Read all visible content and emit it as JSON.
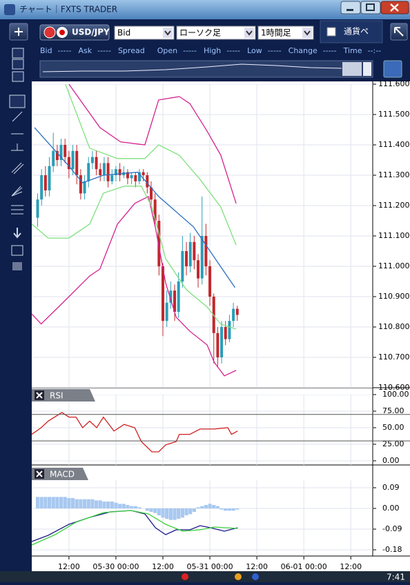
{
  "window": {
    "title": "チャート｜FXTS TRADER"
  },
  "toolbar": {
    "symbol": "USD/JPY",
    "price_type": "Bid",
    "chart_type": "ローソク足",
    "timeframe": "1時間足",
    "pair_label": "通貨ペ"
  },
  "quote": [
    {
      "label": "Bid",
      "value": "-----"
    },
    {
      "label": "Ask",
      "value": "-----"
    },
    {
      "label": "Spread"
    },
    {
      "label": "Open",
      "value": "-----"
    },
    {
      "label": "High",
      "value": "-----"
    },
    {
      "label": "Low",
      "value": "-----"
    },
    {
      "label": "Change",
      "value": "-----"
    },
    {
      "label": "Time",
      "value": "--:--"
    }
  ],
  "chart_data": [
    {
      "type": "candlestick",
      "ylim": [
        110.6,
        111.6
      ],
      "yticks": [
        {
          "value": 111.6,
          "label": "111.600"
        },
        {
          "value": 111.5,
          "label": "111.500"
        },
        {
          "value": 111.4,
          "label": "111.400"
        },
        {
          "value": 111.3,
          "label": "111.300"
        },
        {
          "value": 111.2,
          "label": "111.200"
        },
        {
          "value": 111.1,
          "label": "111.100"
        },
        {
          "value": 111.0,
          "label": "111.000"
        },
        {
          "value": 110.9,
          "label": "110.900"
        },
        {
          "value": 110.8,
          "label": "110.800"
        },
        {
          "value": 110.7,
          "label": "110.700"
        },
        {
          "value": 110.6,
          "label": "110.600"
        }
      ],
      "grid": true,
      "up_color": "#2a9db8",
      "down_color": "#c0282d",
      "x": [
        4,
        5,
        6,
        7,
        8,
        9,
        10,
        11,
        12,
        13,
        14,
        15,
        16,
        17,
        18,
        19,
        20,
        21,
        22,
        23,
        24,
        25,
        26,
        27,
        28,
        29,
        30,
        31,
        32,
        33,
        34,
        35,
        36,
        37,
        38,
        39,
        40,
        41,
        42,
        43,
        44,
        45,
        46,
        47,
        48,
        49,
        50,
        51,
        52,
        53,
        54,
        55
      ],
      "open": [
        111.16,
        111.22,
        111.3,
        111.25,
        111.33,
        111.38,
        111.35,
        111.4,
        111.36,
        111.32,
        111.38,
        111.3,
        111.24,
        111.28,
        111.34,
        111.36,
        111.32,
        111.3,
        111.34,
        111.28,
        111.3,
        111.32,
        111.3,
        111.31,
        111.29,
        111.3,
        111.28,
        111.31,
        111.3,
        111.26,
        111.22,
        111.15,
        111.0,
        110.82,
        110.88,
        110.92,
        110.85,
        110.95,
        111.05,
        111.0,
        111.08,
        111.02,
        110.96,
        111.1,
        111.0,
        110.9,
        110.78,
        110.7,
        110.8,
        110.76,
        110.82,
        110.86
      ],
      "high": [
        111.24,
        111.32,
        111.33,
        111.36,
        111.44,
        111.4,
        111.42,
        111.42,
        111.38,
        111.4,
        111.4,
        111.32,
        111.3,
        111.36,
        111.38,
        111.38,
        111.34,
        111.36,
        111.36,
        111.32,
        111.33,
        111.34,
        111.33,
        111.32,
        111.31,
        111.31,
        111.32,
        111.32,
        111.31,
        111.28,
        111.24,
        111.17,
        111.01,
        110.92,
        110.95,
        110.94,
        110.98,
        111.1,
        111.08,
        111.11,
        111.1,
        111.04,
        111.23,
        111.14,
        111.02,
        110.91,
        110.8,
        110.82,
        110.82,
        110.84,
        110.88,
        110.87
      ],
      "low": [
        111.13,
        111.2,
        111.23,
        111.23,
        111.31,
        111.33,
        111.33,
        111.34,
        111.29,
        111.3,
        111.27,
        111.22,
        111.22,
        111.26,
        111.32,
        111.3,
        111.28,
        111.28,
        111.26,
        111.27,
        111.28,
        111.28,
        111.29,
        111.27,
        111.27,
        111.26,
        111.27,
        111.28,
        111.24,
        111.2,
        111.13,
        110.97,
        110.77,
        110.8,
        110.86,
        110.82,
        110.83,
        110.93,
        110.97,
        110.98,
        110.99,
        110.93,
        110.94,
        110.97,
        110.87,
        110.68,
        110.67,
        110.68,
        110.74,
        110.75,
        110.8,
        110.82
      ],
      "close": [
        111.22,
        111.3,
        111.25,
        111.33,
        111.38,
        111.35,
        111.4,
        111.36,
        111.32,
        111.38,
        111.3,
        111.24,
        111.28,
        111.34,
        111.36,
        111.32,
        111.3,
        111.34,
        111.28,
        111.3,
        111.32,
        111.3,
        111.31,
        111.29,
        111.3,
        111.28,
        111.31,
        111.3,
        111.26,
        111.22,
        111.15,
        111.0,
        110.82,
        110.88,
        110.92,
        110.85,
        110.95,
        111.05,
        111.0,
        111.08,
        111.02,
        110.96,
        111.1,
        111.0,
        110.9,
        110.78,
        110.7,
        110.8,
        110.76,
        110.82,
        110.86,
        110.84
      ],
      "series": [
        {
          "color": "#2a6fc0",
          "x": [
            3.2,
            12,
            15.5,
            20.8,
            29.6,
            34.9,
            43.8,
            54.4
          ],
          "values": [
            111.457,
            111.33,
            111.275,
            111.3,
            111.31,
            111.23,
            111.13,
            110.93
          ]
        },
        {
          "color": "#d4208f",
          "x": [
            12,
            19.9,
            25.2,
            31.4,
            34.9,
            40.2,
            42.9,
            47.3,
            50.8,
            54.7
          ],
          "values": [
            111.6,
            111.457,
            111.41,
            111.4,
            111.548,
            111.559,
            111.536,
            111.445,
            111.366,
            111.207
          ]
        },
        {
          "color": "#d4208f",
          "x": [
            2.5,
            4.9,
            10.2,
            17.3,
            19.9,
            24.4,
            28.8,
            32.3,
            34.1,
            36.7,
            39.4,
            42.9,
            47.3,
            49.1,
            51.7,
            54.7
          ],
          "values": [
            110.843,
            110.81,
            110.877,
            110.968,
            110.991,
            111.139,
            111.207,
            111.23,
            111.127,
            110.945,
            110.832,
            110.786,
            110.741,
            110.684,
            110.639,
            110.657
          ]
        },
        {
          "color": "#7ee07e",
          "x": [
            11.1,
            17.3,
            24.4,
            31.4,
            34.9,
            40.2,
            45.5,
            50.8,
            54.7
          ],
          "values": [
            111.6,
            111.389,
            111.355,
            111.355,
            111.4,
            111.366,
            111.286,
            111.195,
            111.07
          ]
        },
        {
          "color": "#7ee07e",
          "x": [
            2.5,
            6.7,
            12,
            17.3,
            20.8,
            26.1,
            30.5,
            33.2,
            36.7,
            42,
            47.3,
            50.8,
            54.7
          ],
          "values": [
            111.139,
            111.093,
            111.093,
            111.139,
            111.241,
            111.264,
            111.264,
            111.195,
            111.025,
            110.923,
            110.866,
            110.809,
            110.793
          ]
        }
      ]
    },
    {
      "type": "line",
      "title": "RSI",
      "ylim": [
        -4.2,
        100
      ],
      "yticks": [
        {
          "value": 100,
          "label": "100.00"
        },
        {
          "value": 75,
          "label": "75.00"
        },
        {
          "value": 50,
          "label": "50.00"
        },
        {
          "value": 25,
          "label": "25.00"
        },
        {
          "value": 0,
          "label": "0.00"
        }
      ],
      "grid": true,
      "reference_lines": [
        70,
        30
      ],
      "series": [
        {
          "color": "#d02020",
          "x": [
            2.5,
            4.9,
            6.7,
            10.2,
            12,
            13.8,
            15.5,
            17.3,
            19.1,
            20.8,
            23.5,
            26.1,
            28.8,
            30.5,
            33.2,
            34.9,
            36.7,
            39.4,
            40.2,
            42.9,
            45.5,
            49.1,
            52.6,
            53.5,
            55.1
          ],
          "values": [
            40,
            50,
            60,
            73,
            66,
            66,
            50,
            60,
            50,
            66,
            45,
            55,
            50,
            29,
            13.5,
            13.5,
            24,
            29,
            40,
            40,
            48,
            48,
            50,
            40,
            45
          ]
        }
      ]
    },
    {
      "type": "combo",
      "title": "MACD",
      "ylim": [
        -0.207,
        0.123
      ],
      "yticks": [
        0.09,
        {
          "value": 0,
          "label": "0.00"
        },
        -0.09,
        -0.18
      ],
      "grid": true,
      "color": "#a8c8f0",
      "xlim": [
        2.5,
        89.6
      ],
      "xticks": [
        {
          "value": 12,
          "label": "12:00"
        },
        {
          "value": 24,
          "label": "05-30 00:00"
        },
        {
          "value": 36,
          "label": "12:00"
        },
        {
          "value": 48,
          "label": "05-31 00:00"
        },
        {
          "value": 60,
          "label": "12:00"
        },
        {
          "value": 72,
          "label": "06-01 00:00"
        },
        {
          "value": 84,
          "label": "12:00"
        }
      ],
      "x": [
        4,
        5,
        6,
        7,
        8,
        9,
        10,
        11,
        12,
        13,
        14,
        15,
        16,
        17,
        18,
        19,
        20,
        21,
        22,
        23,
        24,
        25,
        26,
        27,
        28,
        29,
        30,
        31,
        32,
        33,
        34,
        35,
        36,
        37,
        38,
        39,
        40,
        41,
        42,
        43,
        44,
        45,
        46,
        47,
        48,
        49,
        50,
        51,
        52,
        53,
        54,
        55
      ],
      "values": [
        0.05,
        0.05,
        0.05,
        0.05,
        0.05,
        0.05,
        0.05,
        0.05,
        0.045,
        0.045,
        0.04,
        0.04,
        0.04,
        0.04,
        0.04,
        0.035,
        0.035,
        0.03,
        0.03,
        0.03,
        0.025,
        0.02,
        0.02,
        0.015,
        0.01,
        0.01,
        0.005,
        0.0,
        -0.01,
        -0.015,
        -0.02,
        -0.03,
        -0.04,
        -0.045,
        -0.05,
        -0.05,
        -0.045,
        -0.04,
        -0.03,
        -0.025,
        -0.015,
        0.005,
        0.01,
        0.015,
        0.02,
        0.015,
        0.01,
        -0.005,
        -0.01,
        -0.01,
        -0.01,
        -0.005
      ],
      "series": [
        {
          "color": "#1a1a8a",
          "x": [
            2.5,
            6.7,
            12,
            17.3,
            22.6,
            27.9,
            31.4,
            34.1,
            36.7,
            39.4,
            42.9,
            45.5,
            48.2,
            51.7,
            55.1
          ],
          "values": [
            -0.144,
            -0.117,
            -0.069,
            -0.039,
            -0.015,
            -0.009,
            -0.024,
            -0.084,
            -0.114,
            -0.093,
            -0.093,
            -0.075,
            -0.084,
            -0.099,
            -0.084
          ]
        },
        {
          "color": "#3ad03a",
          "x": [
            2.5,
            8.5,
            13.8,
            20.8,
            27.9,
            32.3,
            36.7,
            41.1,
            45.5,
            49.1,
            55.1
          ],
          "values": [
            -0.159,
            -0.114,
            -0.06,
            -0.018,
            -0.009,
            -0.024,
            -0.069,
            -0.099,
            -0.093,
            -0.081,
            -0.087
          ]
        }
      ]
    }
  ],
  "taskbar": {
    "clock": "7:41"
  }
}
